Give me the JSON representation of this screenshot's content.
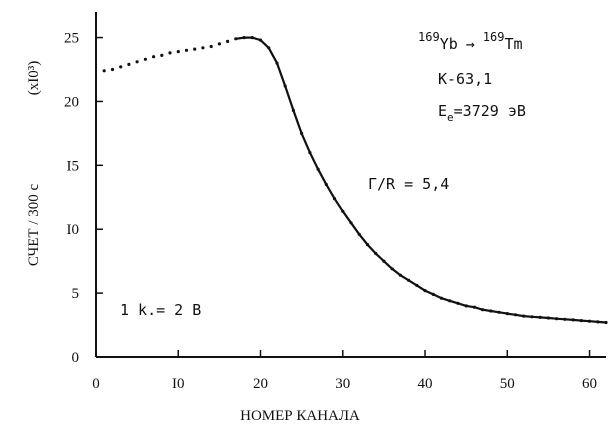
{
  "chart_data": {
    "type": "scatter",
    "xlabel": "НОМЕР КАНАЛА",
    "ylabel": "СЧЕТ / 300 с",
    "y_multiplier": "(xI0³)",
    "xlim": [
      0,
      62
    ],
    "ylim": [
      0,
      27
    ],
    "x_ticks": [
      0,
      10,
      20,
      30,
      40,
      50,
      60
    ],
    "x_tick_labels": [
      "0",
      "I0",
      "20",
      "30",
      "40",
      "50",
      "60"
    ],
    "y_ticks": [
      0,
      5,
      10,
      15,
      20,
      25
    ],
    "y_tick_labels": [
      "0",
      "5",
      "I0",
      "I5",
      "20",
      "25"
    ],
    "grid": false,
    "annotations": {
      "reaction_prefix": "169",
      "reaction_from": "Yb",
      "reaction_arrow": "→",
      "reaction_suffix": "169",
      "reaction_to": "Tm",
      "line_k": "K-63,1",
      "energy_label": "E",
      "energy_subscript": "e",
      "energy_value": "=3729 эВ",
      "ratio": "Г/R = 5,4",
      "scale": "1 k.= 2 В"
    },
    "series": [
      {
        "points": [
          [
            1.0,
            22.4
          ],
          [
            2.0,
            22.5
          ],
          [
            3.0,
            22.7
          ],
          [
            4.0,
            22.9
          ],
          [
            5.0,
            23.1
          ],
          [
            6.0,
            23.3
          ],
          [
            7.0,
            23.5
          ],
          [
            8.0,
            23.6
          ],
          [
            9.0,
            23.8
          ],
          [
            10.0,
            23.9
          ],
          [
            11.0,
            24.0
          ],
          [
            12.0,
            24.1
          ],
          [
            13.0,
            24.2
          ],
          [
            14.0,
            24.3
          ],
          [
            15.0,
            24.5
          ],
          [
            16.0,
            24.7
          ],
          [
            17.0,
            24.9
          ],
          [
            18.0,
            25.0
          ],
          [
            19.0,
            25.0
          ],
          [
            20.0,
            24.8
          ],
          [
            21.0,
            24.2
          ],
          [
            22.0,
            23.0
          ],
          [
            23.0,
            21.2
          ],
          [
            24.0,
            19.3
          ],
          [
            25.0,
            17.5
          ],
          [
            26.0,
            16.0
          ],
          [
            27.0,
            14.7
          ],
          [
            28.0,
            13.5
          ],
          [
            29.0,
            12.4
          ],
          [
            30.0,
            11.4
          ],
          [
            31.0,
            10.5
          ],
          [
            32.0,
            9.6
          ],
          [
            33.0,
            8.8
          ],
          [
            34.0,
            8.1
          ],
          [
            35.0,
            7.5
          ],
          [
            36.0,
            6.9
          ],
          [
            37.0,
            6.4
          ],
          [
            38.0,
            6.0
          ],
          [
            39.0,
            5.6
          ],
          [
            40.0,
            5.2
          ],
          [
            41.0,
            4.9
          ],
          [
            42.0,
            4.6
          ],
          [
            43.0,
            4.4
          ],
          [
            44.0,
            4.2
          ],
          [
            45.0,
            4.0
          ],
          [
            46.0,
            3.9
          ],
          [
            47.0,
            3.7
          ],
          [
            48.0,
            3.6
          ],
          [
            49.0,
            3.5
          ],
          [
            50.0,
            3.4
          ],
          [
            51.0,
            3.3
          ],
          [
            52.0,
            3.2
          ],
          [
            53.0,
            3.15
          ],
          [
            54.0,
            3.1
          ],
          [
            55.0,
            3.05
          ],
          [
            56.0,
            3.0
          ],
          [
            57.0,
            2.95
          ],
          [
            58.0,
            2.9
          ],
          [
            59.0,
            2.85
          ],
          [
            60.0,
            2.8
          ],
          [
            61.0,
            2.75
          ],
          [
            62.0,
            2.7
          ]
        ]
      },
      {
        "type": "line",
        "points": [
          [
            17.0,
            24.9
          ],
          [
            18.0,
            25.0
          ],
          [
            19.0,
            25.0
          ],
          [
            20.0,
            24.8
          ],
          [
            21.0,
            24.2
          ],
          [
            22.0,
            23.0
          ],
          [
            23.0,
            21.2
          ],
          [
            24.0,
            19.3
          ],
          [
            25.0,
            17.5
          ],
          [
            26.0,
            16.0
          ],
          [
            27.0,
            14.7
          ],
          [
            28.0,
            13.5
          ],
          [
            29.0,
            12.4
          ],
          [
            30.0,
            11.4
          ],
          [
            31.0,
            10.5
          ],
          [
            32.0,
            9.6
          ],
          [
            33.0,
            8.8
          ],
          [
            34.0,
            8.1
          ],
          [
            35.0,
            7.5
          ],
          [
            36.0,
            6.9
          ],
          [
            37.0,
            6.4
          ],
          [
            38.0,
            6.0
          ],
          [
            39.0,
            5.6
          ],
          [
            40.0,
            5.2
          ],
          [
            41.0,
            4.9
          ],
          [
            42.0,
            4.6
          ],
          [
            43.0,
            4.4
          ],
          [
            44.0,
            4.2
          ],
          [
            45.0,
            4.0
          ],
          [
            46.0,
            3.9
          ],
          [
            47.0,
            3.7
          ],
          [
            48.0,
            3.6
          ],
          [
            49.0,
            3.5
          ],
          [
            50.0,
            3.4
          ],
          [
            51.0,
            3.3
          ],
          [
            52.0,
            3.2
          ],
          [
            53.0,
            3.15
          ],
          [
            54.0,
            3.1
          ],
          [
            55.0,
            3.05
          ],
          [
            56.0,
            3.0
          ],
          [
            57.0,
            2.95
          ],
          [
            58.0,
            2.9
          ],
          [
            59.0,
            2.85
          ],
          [
            60.0,
            2.8
          ],
          [
            61.0,
            2.75
          ],
          [
            62.0,
            2.7
          ]
        ]
      }
    ]
  }
}
